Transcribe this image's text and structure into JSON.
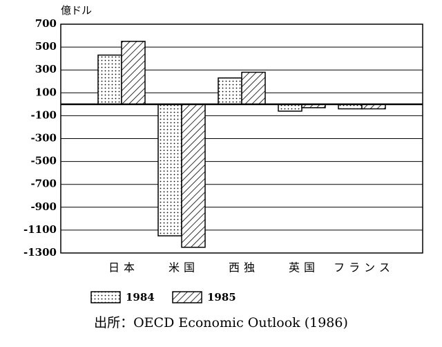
{
  "chart_data": {
    "type": "bar",
    "y_label": "億ドル",
    "categories": [
      "日本",
      "米国",
      "西独",
      "英国",
      "フランス"
    ],
    "series": [
      {
        "name": "1984",
        "pattern": "dots",
        "color": "#000000",
        "values": [
          430,
          -1150,
          230,
          -60,
          -40
        ]
      },
      {
        "name": "1985",
        "pattern": "hatch",
        "color": "#000000",
        "values": [
          550,
          -1250,
          280,
          -30,
          -40
        ]
      }
    ],
    "ylim": [
      -1300,
      700
    ],
    "yticks": [
      700,
      500,
      300,
      100,
      -100,
      -300,
      -500,
      -700,
      -900,
      -1100,
      -1300
    ],
    "grid": true,
    "source": "出所：OECD Economic Outlook (1986)"
  }
}
